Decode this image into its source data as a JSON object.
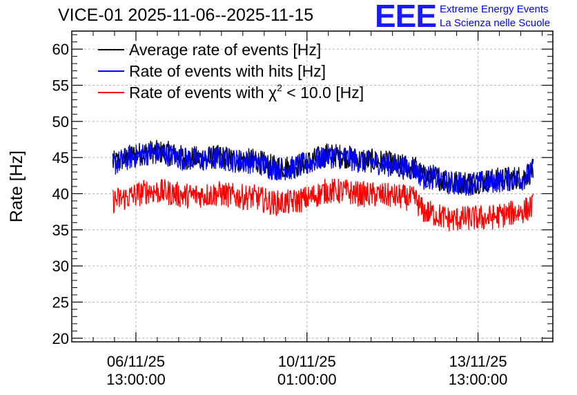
{
  "header": {
    "title": "VICE-01 2025-11-06--2025-11-15",
    "logo_text": "EEE",
    "logo_line1": "Extreme Energy Events",
    "logo_line2": "La Scienza nelle Scuole"
  },
  "colors": {
    "average": "#000000",
    "hits": "#0000ff",
    "chi2": "#ff0000",
    "grid": "#b4b4b4",
    "logo": "#1a1aff"
  },
  "chart_data": {
    "type": "line",
    "title": "VICE-01 2025-11-06--2025-11-15",
    "xlabel": "",
    "ylabel": "Rate [Hz]",
    "ylim": [
      19.5,
      62.5
    ],
    "xlim_hours_from_start": [
      -23,
      247
    ],
    "yticks": [
      20,
      25,
      30,
      35,
      40,
      45,
      50,
      55,
      60
    ],
    "xticks": [
      {
        "hours": 13,
        "line1": "06/11/25",
        "line2": "13:00:00"
      },
      {
        "hours": 109,
        "line1": "10/11/25",
        "line2": "01:00:00"
      },
      {
        "hours": 205,
        "line1": "13/11/25",
        "line2": "13:00:00"
      }
    ],
    "grid": true,
    "legend_position": "top-left",
    "series": [
      {
        "name": "Average rate of events [Hz]",
        "color": "#000000",
        "x_hours": [
          0,
          10,
          20,
          30,
          40,
          50,
          60,
          70,
          80,
          90,
          100,
          110,
          120,
          130,
          140,
          150,
          160,
          170,
          174,
          180,
          190,
          200,
          210,
          220,
          230,
          236
        ],
        "values": [
          44.2,
          45.2,
          45.8,
          45.7,
          45.0,
          44.9,
          45.1,
          44.7,
          44.6,
          43.7,
          43.7,
          44.4,
          45.4,
          45.2,
          44.6,
          44.5,
          43.9,
          43.6,
          42.4,
          42.4,
          41.6,
          41.6,
          41.8,
          42.1,
          42.3,
          43.2
        ]
      },
      {
        "name": "Rate of events with hits [Hz]",
        "color": "#0000ff",
        "x_hours": [
          0,
          10,
          20,
          30,
          40,
          50,
          60,
          70,
          80,
          90,
          100,
          110,
          120,
          130,
          140,
          150,
          160,
          170,
          174,
          180,
          190,
          200,
          210,
          220,
          230,
          236
        ],
        "values": [
          44.0,
          45.0,
          45.6,
          45.5,
          44.8,
          44.7,
          44.9,
          44.5,
          44.4,
          43.5,
          43.5,
          44.2,
          45.2,
          45.0,
          44.4,
          44.3,
          43.7,
          43.4,
          42.2,
          42.2,
          41.4,
          41.4,
          41.6,
          41.9,
          42.1,
          43.0
        ]
      },
      {
        "name": "Rate of events with χ² < 10.0 [Hz]",
        "color": "#ff0000",
        "x_hours": [
          0,
          10,
          20,
          30,
          40,
          50,
          60,
          70,
          80,
          90,
          100,
          110,
          120,
          130,
          140,
          150,
          160,
          170,
          174,
          180,
          190,
          200,
          210,
          220,
          230,
          236
        ],
        "values": [
          39.0,
          39.6,
          40.4,
          40.2,
          39.7,
          39.8,
          40.0,
          39.6,
          39.5,
          38.7,
          38.8,
          39.4,
          40.4,
          40.3,
          39.9,
          39.8,
          39.6,
          39.2,
          37.6,
          37.2,
          36.4,
          36.6,
          36.6,
          37.1,
          37.6,
          38.3
        ]
      }
    ]
  },
  "legend": {
    "items": [
      {
        "name": "average",
        "text": "Average rate of events [Hz]"
      },
      {
        "name": "hits",
        "text": "Rate of events with hits [Hz]"
      },
      {
        "name": "chi2",
        "prefix": "Rate of events with ",
        "chi": "χ",
        "sup": "2",
        "suffix": " < 10.0 [Hz]"
      }
    ]
  }
}
